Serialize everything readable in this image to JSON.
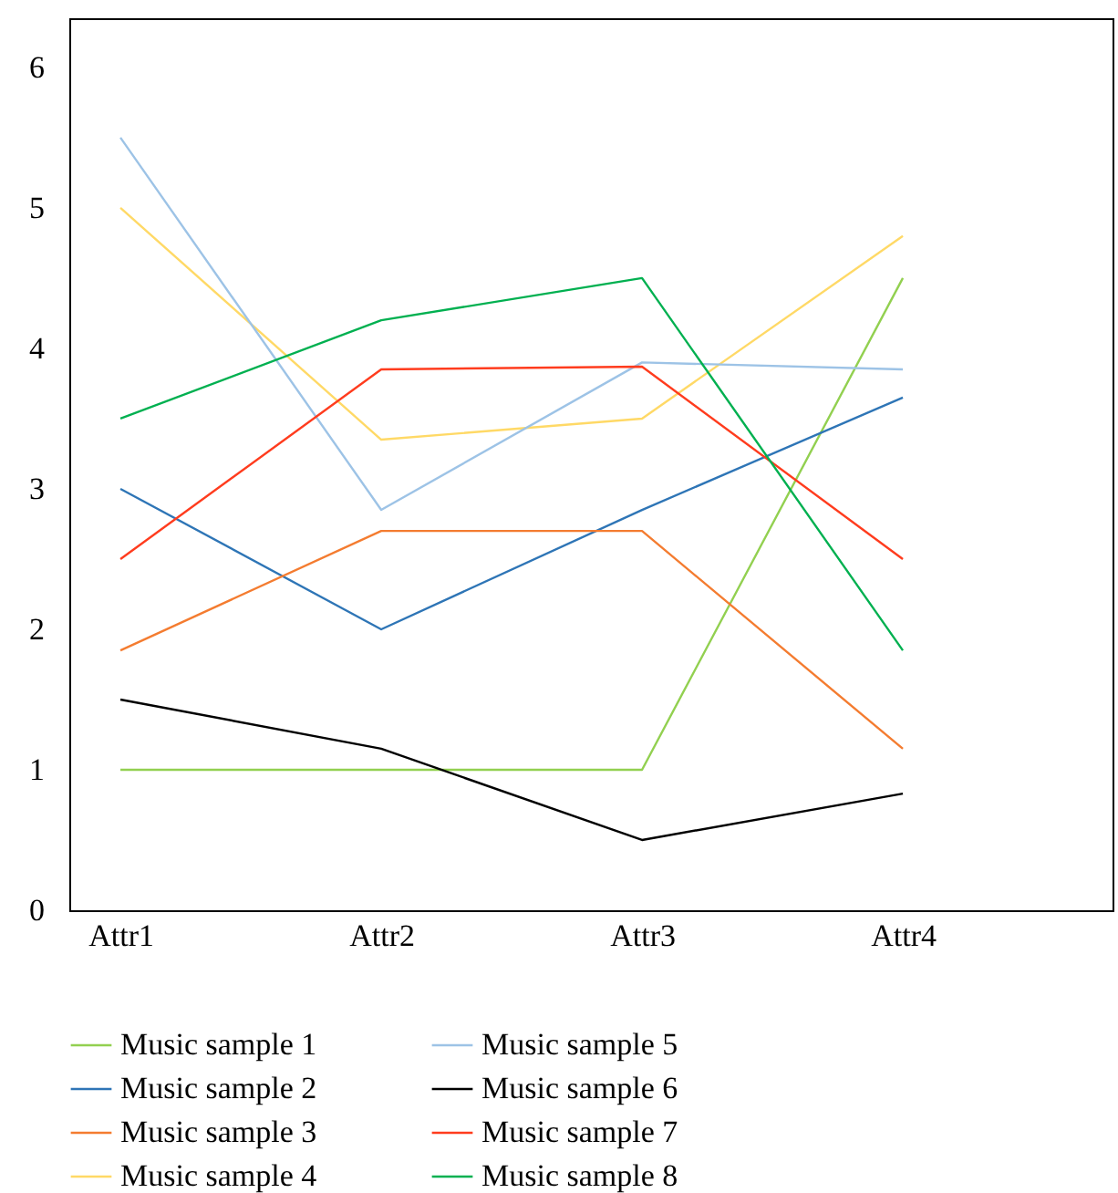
{
  "chart_data": {
    "type": "line",
    "categories": [
      "Attr1",
      "Attr2",
      "Attr3",
      "Attr4"
    ],
    "series": [
      {
        "name": "Music sample 1",
        "color": "#92d050",
        "values": [
          1,
          1,
          1,
          4.5
        ]
      },
      {
        "name": "Music sample 2",
        "color": "#2e75b6",
        "values": [
          3.0,
          2.0,
          2.85,
          3.65
        ]
      },
      {
        "name": "Music sample 3",
        "color": "#f47c30",
        "values": [
          1.85,
          2.7,
          2.7,
          1.15
        ]
      },
      {
        "name": "Music sample 4",
        "color": "#ffd966",
        "values": [
          5.0,
          3.35,
          3.5,
          4.8
        ]
      },
      {
        "name": "Music sample 5",
        "color": "#9dc3e6",
        "values": [
          5.5,
          2.85,
          3.9,
          3.85
        ]
      },
      {
        "name": "Music sample 6",
        "color": "#000000",
        "values": [
          1.5,
          1.15,
          0.5,
          0.83
        ]
      },
      {
        "name": "Music sample 7",
        "color": "#ff3c1e",
        "values": [
          2.5,
          3.85,
          3.87,
          2.5
        ]
      },
      {
        "name": "Music sample 8",
        "color": "#00b050",
        "values": [
          3.5,
          4.2,
          4.5,
          1.85
        ]
      }
    ],
    "ylim": [
      0,
      6.35
    ],
    "yticks": [
      0,
      1,
      2,
      3,
      4,
      5,
      6
    ],
    "grid": false,
    "legend": "bottom",
    "marker": "none",
    "line_style": "solid"
  }
}
